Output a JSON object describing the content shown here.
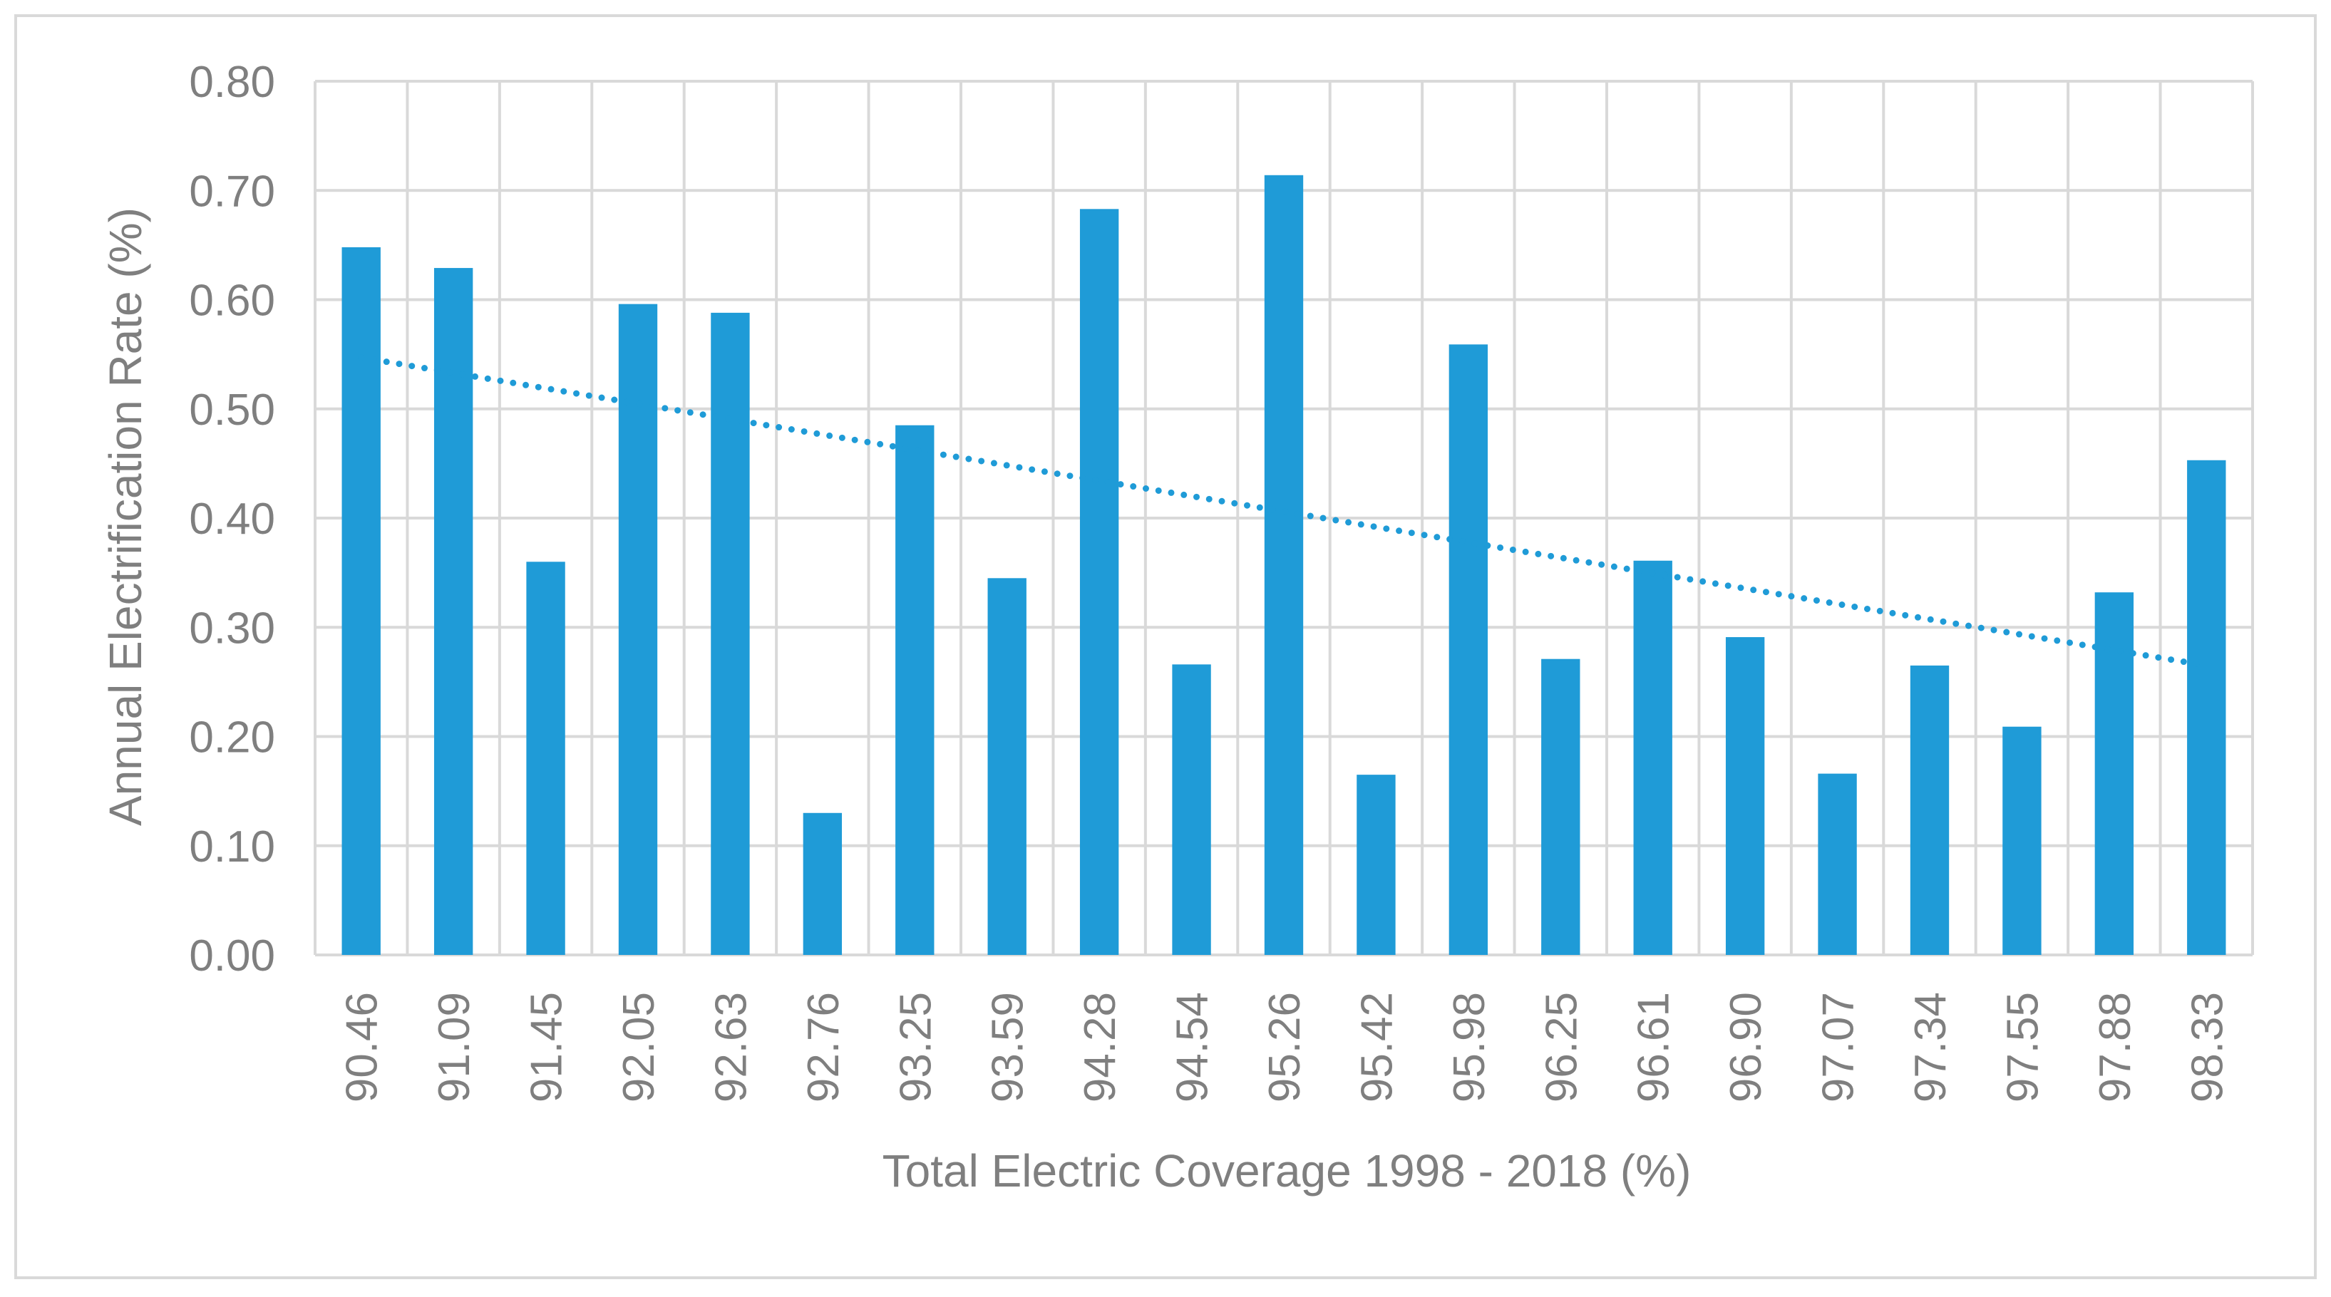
{
  "colors": {
    "bar": "#1f9bd7",
    "trendline": "#1f9bd7",
    "grid": "#d9d9d9",
    "text": "#7f7f7f",
    "border": "#d9d9d9",
    "background": "#ffffff"
  },
  "chart_data": {
    "type": "bar",
    "title": "",
    "xlabel": "Total Electric Coverage 1998 - 2018 (%)",
    "ylabel": "Annual Electrification Rate (%)",
    "ylim": [
      0,
      0.8
    ],
    "yticks": [
      "0.00",
      "0.10",
      "0.20",
      "0.30",
      "0.40",
      "0.50",
      "0.60",
      "0.70",
      "0.80"
    ],
    "grid": true,
    "legend": "none",
    "categories": [
      "90.46",
      "91.09",
      "91.45",
      "92.05",
      "92.63",
      "92.76",
      "93.25",
      "93.59",
      "94.28",
      "94.54",
      "95.26",
      "95.42",
      "95.98",
      "96.25",
      "96.61",
      "96.90",
      "97.07",
      "97.34",
      "97.55",
      "97.88",
      "98.33"
    ],
    "series": [
      {
        "name": "Annual Electrification Rate",
        "values": [
          0.648,
          0.629,
          0.36,
          0.596,
          0.588,
          0.13,
          0.485,
          0.345,
          0.683,
          0.266,
          0.714,
          0.165,
          0.559,
          0.271,
          0.361,
          0.291,
          0.166,
          0.265,
          0.209,
          0.332,
          0.453
        ]
      }
    ],
    "trendline": {
      "type": "linear",
      "style": "dotted",
      "start": 0.547,
      "end": 0.265
    }
  }
}
